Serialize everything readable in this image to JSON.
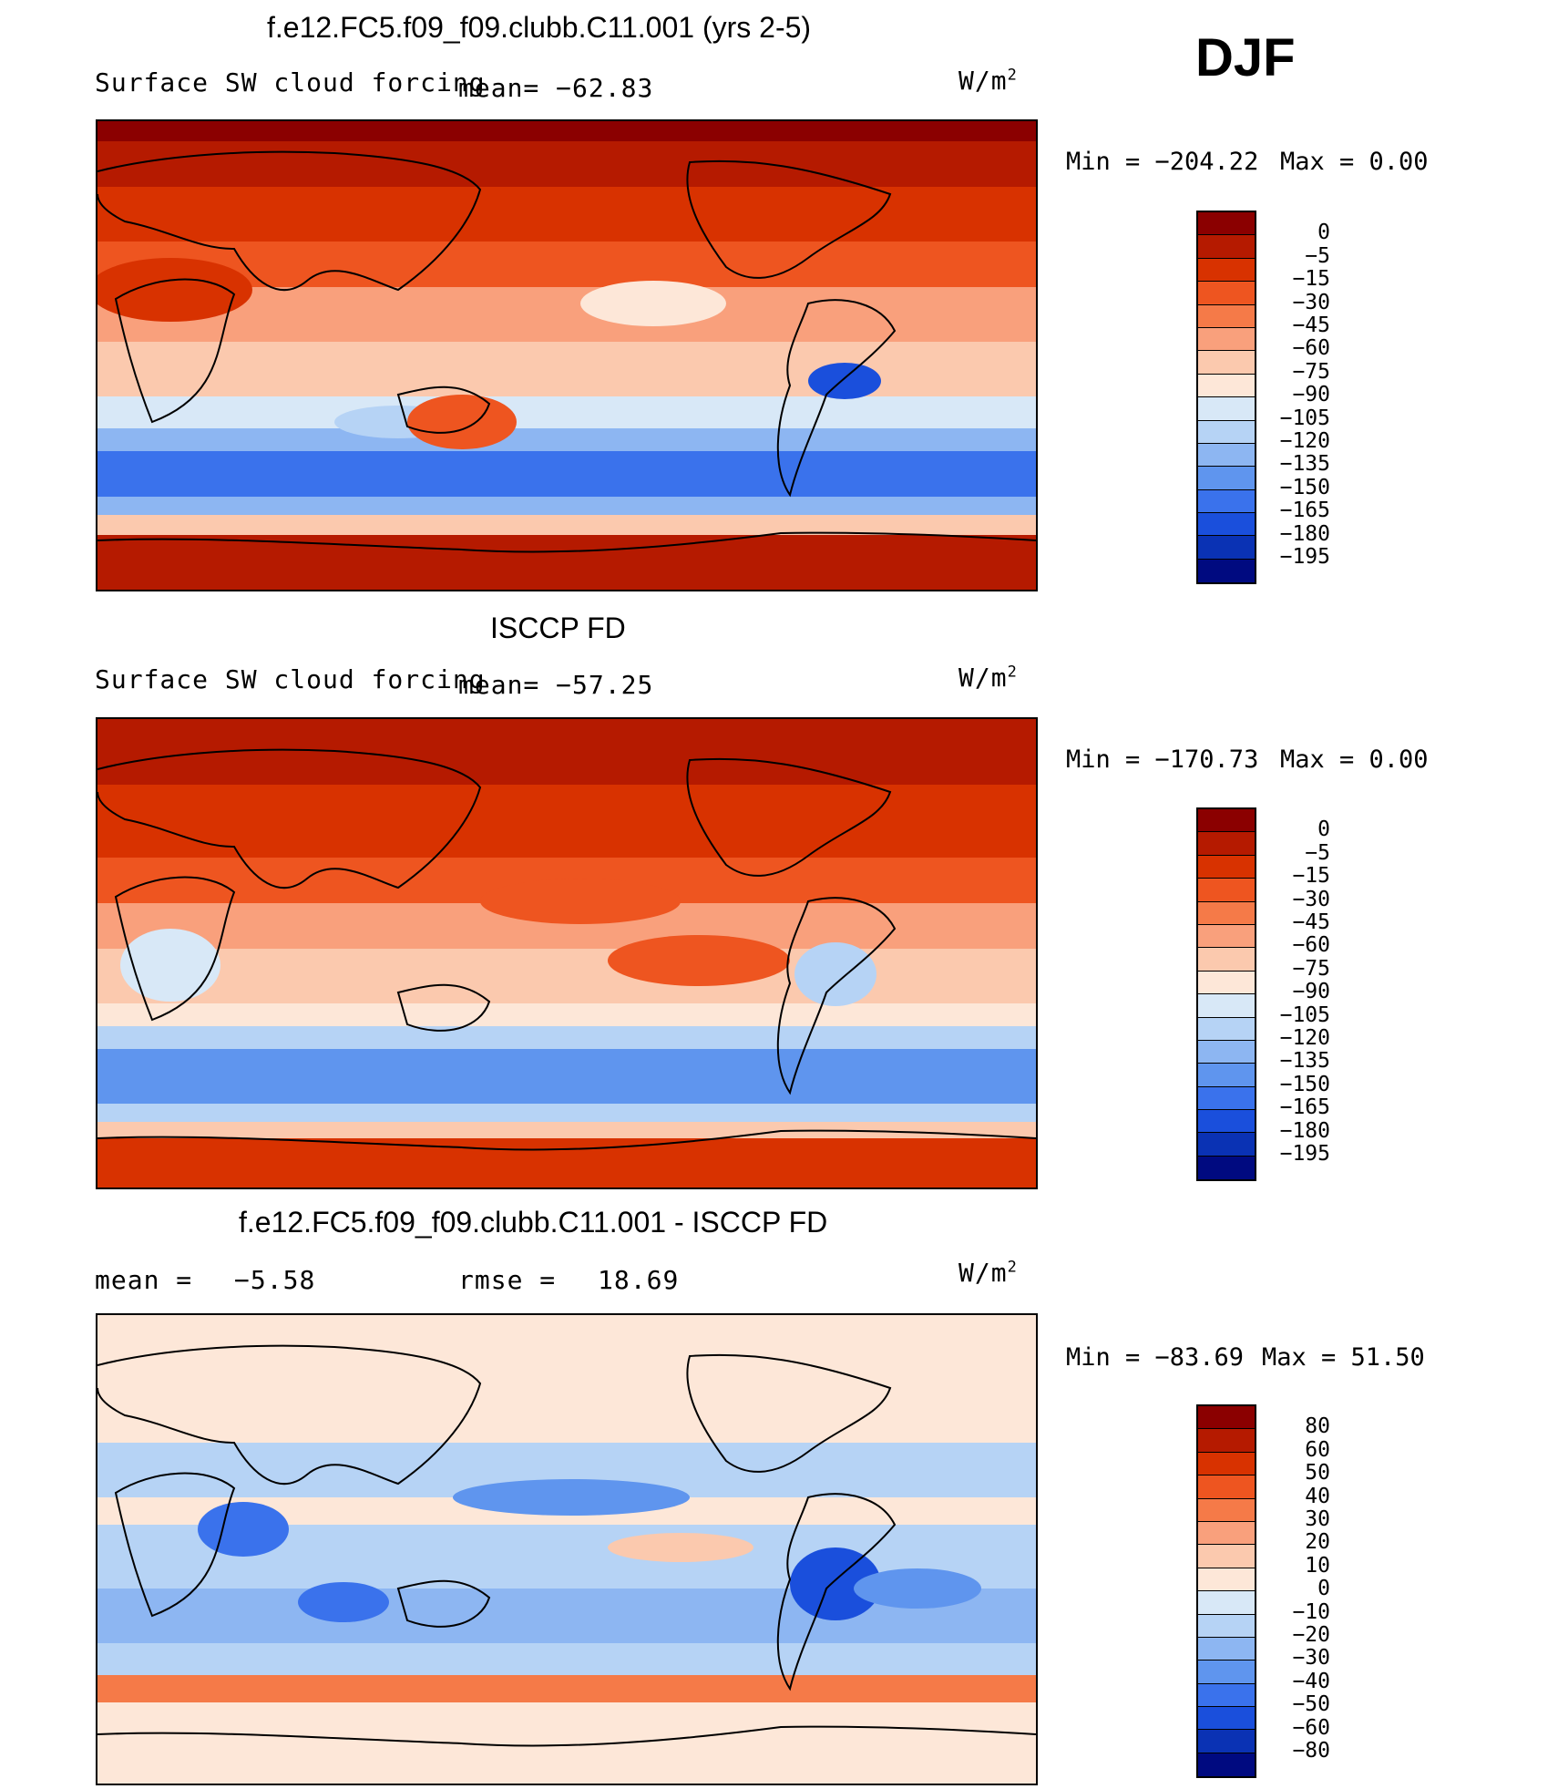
{
  "season": "DJF",
  "units_label": "W/m",
  "units_sup": "2",
  "panels": [
    {
      "title": "f.e12.FC5.f09_f09.clubb.C11.001 (yrs 2-5)",
      "variable": "Surface SW cloud forcing",
      "mean_label": "mean=",
      "mean_value": "−62.83",
      "min_text": "Min  =  −204.22",
      "max_text": "Max  =     0.00",
      "colorbar_labels": [
        "0",
        "−5",
        "−15",
        "−30",
        "−45",
        "−60",
        "−75",
        "−90",
        "−105",
        "−120",
        "−135",
        "−150",
        "−165",
        "−180",
        "−195"
      ]
    },
    {
      "title": "ISCCP FD",
      "variable": "Surface SW cloud forcing",
      "mean_label": "mean=",
      "mean_value": "−57.25",
      "min_text": "Min  =  −170.73",
      "max_text": "Max  =     0.00",
      "colorbar_labels": [
        "0",
        "−5",
        "−15",
        "−30",
        "−45",
        "−60",
        "−75",
        "−90",
        "−105",
        "−120",
        "−135",
        "−150",
        "−165",
        "−180",
        "−195"
      ]
    },
    {
      "title": "f.e12.FC5.f09_f09.clubb.C11.001 - ISCCP FD",
      "mean_label": "mean  =",
      "mean_value": "−5.58",
      "rmse_label": "rmse  =",
      "rmse_value": "18.69",
      "min_text": "Min  =  −83.69",
      "max_text": "Max  =   51.50",
      "colorbar_labels": [
        "80",
        "60",
        "50",
        "40",
        "30",
        "20",
        "10",
        "0",
        "−10",
        "−20",
        "−30",
        "−40",
        "−50",
        "−60",
        "−80"
      ]
    }
  ],
  "colors": {
    "bar16": [
      "#8b0000",
      "#b51a00",
      "#d83200",
      "#ee5520",
      "#f57a48",
      "#f9a07c",
      "#fbc9ae",
      "#fde7d8",
      "#d8e8f7",
      "#b6d3f5",
      "#8db6f2",
      "#5f95ee",
      "#3a72ec",
      "#1a4fdc",
      "#0a32b4",
      "#000a80"
    ]
  },
  "chart_data": [
    {
      "type": "heatmap",
      "title": "f.e12.FC5.f09_f09.clubb.C11.001 (yrs 2-5)",
      "variable": "Surface SW cloud forcing",
      "units": "W/m2",
      "mean": -62.83,
      "min": -204.22,
      "max": 0.0,
      "levels": [
        0,
        -5,
        -15,
        -30,
        -45,
        -60,
        -75,
        -90,
        -105,
        -120,
        -135,
        -150,
        -165,
        -180,
        -195
      ],
      "zonal_profile": [
        {
          "lat": 90,
          "value": -3
        },
        {
          "lat": 80,
          "value": -10
        },
        {
          "lat": 70,
          "value": -22
        },
        {
          "lat": 55,
          "value": -35
        },
        {
          "lat": 40,
          "value": -45
        },
        {
          "lat": 25,
          "value": -58
        },
        {
          "lat": 10,
          "value": -72
        },
        {
          "lat": 0,
          "value": -80
        },
        {
          "lat": -10,
          "value": -88
        },
        {
          "lat": -20,
          "value": -75
        },
        {
          "lat": -30,
          "value": -100
        },
        {
          "lat": -40,
          "value": -140
        },
        {
          "lat": -50,
          "value": -155
        },
        {
          "lat": -58,
          "value": -110
        },
        {
          "lat": -65,
          "value": -45
        },
        {
          "lat": -75,
          "value": -20
        },
        {
          "lat": -90,
          "value": -15
        }
      ]
    },
    {
      "type": "heatmap",
      "title": "ISCCP FD",
      "variable": "Surface SW cloud forcing",
      "units": "W/m2",
      "mean": -57.25,
      "min": -170.73,
      "max": 0.0,
      "levels": [
        0,
        -5,
        -15,
        -30,
        -45,
        -60,
        -75,
        -90,
        -105,
        -120,
        -135,
        -150,
        -165,
        -180,
        -195
      ],
      "zonal_profile": [
        {
          "lat": 90,
          "value": -8
        },
        {
          "lat": 80,
          "value": -10
        },
        {
          "lat": 70,
          "value": -14
        },
        {
          "lat": 55,
          "value": -28
        },
        {
          "lat": 40,
          "value": -40
        },
        {
          "lat": 25,
          "value": -55
        },
        {
          "lat": 10,
          "value": -68
        },
        {
          "lat": 0,
          "value": -82
        },
        {
          "lat": -10,
          "value": -70
        },
        {
          "lat": -20,
          "value": -65
        },
        {
          "lat": -30,
          "value": -85
        },
        {
          "lat": -40,
          "value": -118
        },
        {
          "lat": -50,
          "value": -135
        },
        {
          "lat": -58,
          "value": -100
        },
        {
          "lat": -65,
          "value": -40
        },
        {
          "lat": -75,
          "value": -22
        },
        {
          "lat": -90,
          "value": -20
        }
      ]
    },
    {
      "type": "heatmap",
      "title": "f.e12.FC5.f09_f09.clubb.C11.001 - ISCCP FD",
      "units": "W/m2",
      "mean": -5.58,
      "rmse": 18.69,
      "min": -83.69,
      "max": 51.5,
      "levels": [
        80,
        60,
        50,
        40,
        30,
        20,
        10,
        0,
        -10,
        -20,
        -30,
        -40,
        -50,
        -60,
        -80
      ],
      "zonal_profile": [
        {
          "lat": 90,
          "value": 3
        },
        {
          "lat": 80,
          "value": 2
        },
        {
          "lat": 70,
          "value": -5
        },
        {
          "lat": 55,
          "value": -7
        },
        {
          "lat": 40,
          "value": -5
        },
        {
          "lat": 25,
          "value": -12
        },
        {
          "lat": 10,
          "value": -18
        },
        {
          "lat": 0,
          "value": -8
        },
        {
          "lat": -10,
          "value": -15
        },
        {
          "lat": -20,
          "value": -14
        },
        {
          "lat": -30,
          "value": -18
        },
        {
          "lat": -40,
          "value": -22
        },
        {
          "lat": -50,
          "value": -14
        },
        {
          "lat": -58,
          "value": 15
        },
        {
          "lat": -65,
          "value": 8
        },
        {
          "lat": -75,
          "value": 3
        },
        {
          "lat": -90,
          "value": 2
        }
      ]
    }
  ]
}
